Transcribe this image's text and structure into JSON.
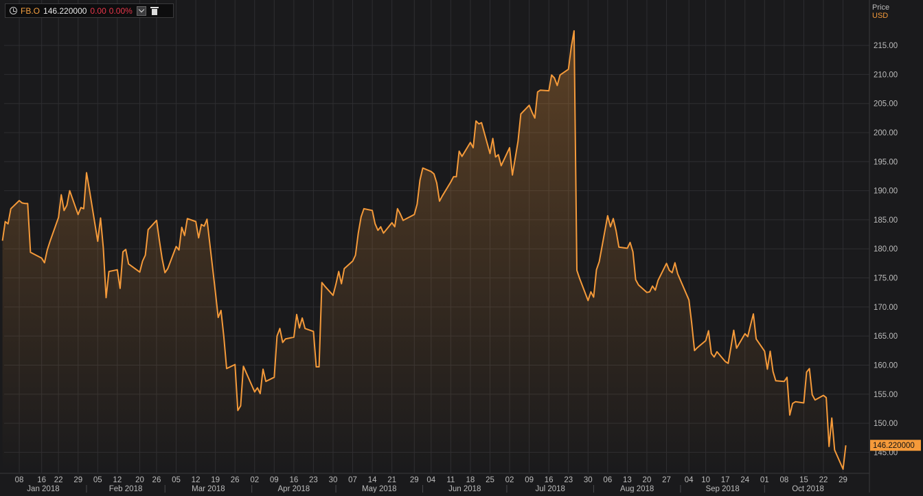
{
  "legend": {
    "symbol": "FB.O",
    "price": "146.220000",
    "change": "0.00",
    "change_pct": "0.00%",
    "dropdown_icon": "chevron-down-icon",
    "delete_icon": "trash-icon",
    "timeframe_icon": "clock-icon"
  },
  "colors": {
    "background": "#1a1a1c",
    "line": "#f59a3a",
    "grid": "#2e2e31",
    "axis_text": "#bdbdbd",
    "negative": "#e8364a"
  },
  "chart_data": {
    "type": "area",
    "ylabel": "Price",
    "unit": "USD",
    "last_value_label": "146.220000",
    "ylim": [
      141.5,
      219.5
    ],
    "y_ticks": [
      145,
      150,
      155,
      160,
      165,
      170,
      175,
      180,
      185,
      190,
      195,
      200,
      205,
      210,
      215
    ],
    "y_tick_labels": [
      "145.00",
      "150.00",
      "155.00",
      "160.00",
      "165.00",
      "170.00",
      "175.00",
      "180.00",
      "185.00",
      "190.00",
      "195.00",
      "200.00",
      "205.00",
      "210.00",
      "215.00"
    ],
    "x_range": [
      "2018-01-01",
      "2018-11-01"
    ],
    "x_ticks": [
      {
        "date": "2018-01-08",
        "label": "08"
      },
      {
        "date": "2018-01-16",
        "label": "16"
      },
      {
        "date": "2018-01-22",
        "label": "22"
      },
      {
        "date": "2018-01-29",
        "label": "29"
      },
      {
        "date": "2018-02-05",
        "label": "05"
      },
      {
        "date": "2018-02-12",
        "label": "12"
      },
      {
        "date": "2018-02-20",
        "label": "20"
      },
      {
        "date": "2018-02-26",
        "label": "26"
      },
      {
        "date": "2018-03-05",
        "label": "05"
      },
      {
        "date": "2018-03-12",
        "label": "12"
      },
      {
        "date": "2018-03-19",
        "label": "19"
      },
      {
        "date": "2018-03-26",
        "label": "26"
      },
      {
        "date": "2018-04-02",
        "label": "02"
      },
      {
        "date": "2018-04-09",
        "label": "09"
      },
      {
        "date": "2018-04-16",
        "label": "16"
      },
      {
        "date": "2018-04-23",
        "label": "23"
      },
      {
        "date": "2018-04-30",
        "label": "30"
      },
      {
        "date": "2018-05-07",
        "label": "07"
      },
      {
        "date": "2018-05-14",
        "label": "14"
      },
      {
        "date": "2018-05-21",
        "label": "21"
      },
      {
        "date": "2018-05-29",
        "label": "29"
      },
      {
        "date": "2018-06-04",
        "label": "04"
      },
      {
        "date": "2018-06-11",
        "label": "11"
      },
      {
        "date": "2018-06-18",
        "label": "18"
      },
      {
        "date": "2018-06-25",
        "label": "25"
      },
      {
        "date": "2018-07-02",
        "label": "02"
      },
      {
        "date": "2018-07-09",
        "label": "09"
      },
      {
        "date": "2018-07-16",
        "label": "16"
      },
      {
        "date": "2018-07-23",
        "label": "23"
      },
      {
        "date": "2018-07-30",
        "label": "30"
      },
      {
        "date": "2018-08-06",
        "label": "06"
      },
      {
        "date": "2018-08-13",
        "label": "13"
      },
      {
        "date": "2018-08-20",
        "label": "20"
      },
      {
        "date": "2018-08-27",
        "label": "27"
      },
      {
        "date": "2018-09-04",
        "label": "04"
      },
      {
        "date": "2018-09-10",
        "label": "10"
      },
      {
        "date": "2018-09-17",
        "label": "17"
      },
      {
        "date": "2018-09-24",
        "label": "24"
      },
      {
        "date": "2018-10-01",
        "label": "01"
      },
      {
        "date": "2018-10-08",
        "label": "08"
      },
      {
        "date": "2018-10-15",
        "label": "15"
      },
      {
        "date": "2018-10-22",
        "label": "22"
      },
      {
        "date": "2018-10-29",
        "label": "29"
      }
    ],
    "months": [
      {
        "start": "2018-01-01",
        "end": "2018-02-01",
        "label": "Jan 2018"
      },
      {
        "start": "2018-02-01",
        "end": "2018-03-01",
        "label": "Feb 2018"
      },
      {
        "start": "2018-03-01",
        "end": "2018-04-01",
        "label": "Mar 2018"
      },
      {
        "start": "2018-04-01",
        "end": "2018-05-01",
        "label": "Apr 2018"
      },
      {
        "start": "2018-05-01",
        "end": "2018-06-01",
        "label": "May 2018"
      },
      {
        "start": "2018-06-01",
        "end": "2018-07-01",
        "label": "Jun 2018"
      },
      {
        "start": "2018-07-01",
        "end": "2018-08-01",
        "label": "Jul 2018"
      },
      {
        "start": "2018-08-01",
        "end": "2018-09-01",
        "label": "Aug 2018"
      },
      {
        "start": "2018-09-01",
        "end": "2018-10-01",
        "label": "Sep 2018"
      },
      {
        "start": "2018-10-01",
        "end": "2018-11-01",
        "label": "Oct 2018"
      }
    ],
    "series": [
      {
        "points": [
          [
            "2018-01-02",
            181.4
          ],
          [
            "2018-01-03",
            184.7
          ],
          [
            "2018-01-04",
            184.3
          ],
          [
            "2018-01-05",
            186.9
          ],
          [
            "2018-01-08",
            188.3
          ],
          [
            "2018-01-09",
            187.9
          ],
          [
            "2018-01-10",
            187.8
          ],
          [
            "2018-01-11",
            187.8
          ],
          [
            "2018-01-12",
            179.4
          ],
          [
            "2018-01-16",
            178.4
          ],
          [
            "2018-01-17",
            177.6
          ],
          [
            "2018-01-18",
            179.8
          ],
          [
            "2018-01-19",
            181.3
          ],
          [
            "2018-01-22",
            185.4
          ],
          [
            "2018-01-23",
            189.3
          ],
          [
            "2018-01-24",
            186.6
          ],
          [
            "2018-01-25",
            187.5
          ],
          [
            "2018-01-26",
            190.0
          ],
          [
            "2018-01-29",
            185.9
          ],
          [
            "2018-01-30",
            187.1
          ],
          [
            "2018-01-31",
            186.9
          ],
          [
            "2018-02-01",
            193.1
          ],
          [
            "2018-02-02",
            190.3
          ],
          [
            "2018-02-05",
            181.3
          ],
          [
            "2018-02-06",
            185.3
          ],
          [
            "2018-02-07",
            180.2
          ],
          [
            "2018-02-08",
            171.6
          ],
          [
            "2018-02-09",
            176.1
          ],
          [
            "2018-02-12",
            176.4
          ],
          [
            "2018-02-13",
            173.2
          ],
          [
            "2018-02-14",
            179.5
          ],
          [
            "2018-02-15",
            179.9
          ],
          [
            "2018-02-16",
            177.4
          ],
          [
            "2018-02-20",
            176.0
          ],
          [
            "2018-02-21",
            177.9
          ],
          [
            "2018-02-22",
            178.9
          ],
          [
            "2018-02-23",
            183.3
          ],
          [
            "2018-02-26",
            184.9
          ],
          [
            "2018-02-27",
            181.5
          ],
          [
            "2018-02-28",
            178.3
          ],
          [
            "2018-03-01",
            175.9
          ],
          [
            "2018-03-02",
            176.6
          ],
          [
            "2018-03-05",
            180.4
          ],
          [
            "2018-03-06",
            179.8
          ],
          [
            "2018-03-07",
            183.7
          ],
          [
            "2018-03-08",
            182.3
          ],
          [
            "2018-03-09",
            185.2
          ],
          [
            "2018-03-12",
            184.7
          ],
          [
            "2018-03-13",
            181.9
          ],
          [
            "2018-03-14",
            184.2
          ],
          [
            "2018-03-15",
            183.9
          ],
          [
            "2018-03-16",
            185.1
          ],
          [
            "2018-03-19",
            172.6
          ],
          [
            "2018-03-20",
            168.2
          ],
          [
            "2018-03-21",
            169.4
          ],
          [
            "2018-03-22",
            164.9
          ],
          [
            "2018-03-23",
            159.4
          ],
          [
            "2018-03-26",
            160.1
          ],
          [
            "2018-03-27",
            152.2
          ],
          [
            "2018-03-28",
            153.0
          ],
          [
            "2018-03-29",
            159.8
          ],
          [
            "2018-04-02",
            155.4
          ],
          [
            "2018-04-03",
            156.1
          ],
          [
            "2018-04-04",
            155.1
          ],
          [
            "2018-04-05",
            159.3
          ],
          [
            "2018-04-06",
            157.2
          ],
          [
            "2018-04-09",
            157.9
          ],
          [
            "2018-04-10",
            165.0
          ],
          [
            "2018-04-11",
            166.3
          ],
          [
            "2018-04-12",
            163.9
          ],
          [
            "2018-04-13",
            164.5
          ],
          [
            "2018-04-16",
            164.8
          ],
          [
            "2018-04-17",
            168.7
          ],
          [
            "2018-04-18",
            166.4
          ],
          [
            "2018-04-19",
            168.1
          ],
          [
            "2018-04-20",
            166.3
          ],
          [
            "2018-04-23",
            165.8
          ],
          [
            "2018-04-24",
            159.7
          ],
          [
            "2018-04-25",
            159.7
          ],
          [
            "2018-04-26",
            174.2
          ],
          [
            "2018-04-27",
            173.6
          ],
          [
            "2018-04-30",
            172.0
          ],
          [
            "2018-05-01",
            173.9
          ],
          [
            "2018-05-02",
            176.1
          ],
          [
            "2018-05-03",
            174.0
          ],
          [
            "2018-05-04",
            176.6
          ],
          [
            "2018-05-07",
            177.9
          ],
          [
            "2018-05-08",
            178.9
          ],
          [
            "2018-05-09",
            182.7
          ],
          [
            "2018-05-10",
            185.5
          ],
          [
            "2018-05-11",
            186.9
          ],
          [
            "2018-05-14",
            186.6
          ],
          [
            "2018-05-15",
            184.3
          ],
          [
            "2018-05-16",
            183.2
          ],
          [
            "2018-05-17",
            183.8
          ],
          [
            "2018-05-18",
            182.7
          ],
          [
            "2018-05-21",
            184.5
          ],
          [
            "2018-05-22",
            183.8
          ],
          [
            "2018-05-23",
            186.9
          ],
          [
            "2018-05-24",
            186.0
          ],
          [
            "2018-05-25",
            184.9
          ],
          [
            "2018-05-29",
            185.9
          ],
          [
            "2018-05-30",
            187.7
          ],
          [
            "2018-05-31",
            191.8
          ],
          [
            "2018-06-01",
            193.9
          ],
          [
            "2018-06-04",
            193.3
          ],
          [
            "2018-06-05",
            192.9
          ],
          [
            "2018-06-06",
            191.3
          ],
          [
            "2018-06-07",
            188.2
          ],
          [
            "2018-06-08",
            189.1
          ],
          [
            "2018-06-11",
            191.5
          ],
          [
            "2018-06-12",
            192.4
          ],
          [
            "2018-06-13",
            192.4
          ],
          [
            "2018-06-14",
            196.8
          ],
          [
            "2018-06-15",
            195.9
          ],
          [
            "2018-06-18",
            198.3
          ],
          [
            "2018-06-19",
            197.4
          ],
          [
            "2018-06-20",
            202.0
          ],
          [
            "2018-06-21",
            201.5
          ],
          [
            "2018-06-22",
            201.7
          ],
          [
            "2018-06-25",
            196.4
          ],
          [
            "2018-06-26",
            199.0
          ],
          [
            "2018-06-27",
            195.8
          ],
          [
            "2018-06-28",
            196.2
          ],
          [
            "2018-06-29",
            194.3
          ],
          [
            "2018-07-02",
            197.4
          ],
          [
            "2018-07-03",
            192.7
          ],
          [
            "2018-07-05",
            198.5
          ],
          [
            "2018-07-06",
            203.2
          ],
          [
            "2018-07-09",
            204.7
          ],
          [
            "2018-07-10",
            203.5
          ],
          [
            "2018-07-11",
            202.5
          ],
          [
            "2018-07-12",
            207.0
          ],
          [
            "2018-07-13",
            207.3
          ],
          [
            "2018-07-16",
            207.2
          ],
          [
            "2018-07-17",
            209.9
          ],
          [
            "2018-07-18",
            209.4
          ],
          [
            "2018-07-19",
            208.1
          ],
          [
            "2018-07-20",
            209.9
          ],
          [
            "2018-07-23",
            210.9
          ],
          [
            "2018-07-24",
            214.7
          ],
          [
            "2018-07-25",
            217.5
          ],
          [
            "2018-07-26",
            176.3
          ],
          [
            "2018-07-27",
            174.9
          ],
          [
            "2018-07-30",
            171.1
          ],
          [
            "2018-07-31",
            172.6
          ],
          [
            "2018-08-01",
            171.7
          ],
          [
            "2018-08-02",
            176.4
          ],
          [
            "2018-08-03",
            177.8
          ],
          [
            "2018-08-06",
            185.7
          ],
          [
            "2018-08-07",
            183.8
          ],
          [
            "2018-08-08",
            185.2
          ],
          [
            "2018-08-09",
            183.1
          ],
          [
            "2018-08-10",
            180.3
          ],
          [
            "2018-08-13",
            180.1
          ],
          [
            "2018-08-14",
            181.1
          ],
          [
            "2018-08-15",
            179.5
          ],
          [
            "2018-08-16",
            174.7
          ],
          [
            "2018-08-17",
            173.8
          ],
          [
            "2018-08-20",
            172.5
          ],
          [
            "2018-08-21",
            172.6
          ],
          [
            "2018-08-22",
            173.6
          ],
          [
            "2018-08-23",
            172.9
          ],
          [
            "2018-08-24",
            174.6
          ],
          [
            "2018-08-27",
            177.5
          ],
          [
            "2018-08-28",
            176.3
          ],
          [
            "2018-08-29",
            175.9
          ],
          [
            "2018-08-30",
            177.6
          ],
          [
            "2018-08-31",
            175.7
          ],
          [
            "2018-09-04",
            171.2
          ],
          [
            "2018-09-05",
            167.2
          ],
          [
            "2018-09-06",
            162.5
          ],
          [
            "2018-09-07",
            163.0
          ],
          [
            "2018-09-10",
            164.2
          ],
          [
            "2018-09-11",
            165.9
          ],
          [
            "2018-09-12",
            162.0
          ],
          [
            "2018-09-13",
            161.4
          ],
          [
            "2018-09-14",
            162.3
          ],
          [
            "2018-09-17",
            160.6
          ],
          [
            "2018-09-18",
            160.3
          ],
          [
            "2018-09-19",
            163.1
          ],
          [
            "2018-09-20",
            166.0
          ],
          [
            "2018-09-21",
            162.9
          ],
          [
            "2018-09-24",
            165.4
          ],
          [
            "2018-09-25",
            164.9
          ],
          [
            "2018-09-26",
            166.9
          ],
          [
            "2018-09-27",
            168.8
          ],
          [
            "2018-09-28",
            164.5
          ],
          [
            "2018-10-01",
            162.4
          ],
          [
            "2018-10-02",
            159.3
          ],
          [
            "2018-10-03",
            162.4
          ],
          [
            "2018-10-04",
            158.9
          ],
          [
            "2018-10-05",
            157.3
          ],
          [
            "2018-10-08",
            157.2
          ],
          [
            "2018-10-09",
            157.9
          ],
          [
            "2018-10-10",
            151.4
          ],
          [
            "2018-10-11",
            153.4
          ],
          [
            "2018-10-12",
            153.7
          ],
          [
            "2018-10-15",
            153.5
          ],
          [
            "2018-10-16",
            158.8
          ],
          [
            "2018-10-17",
            159.4
          ],
          [
            "2018-10-18",
            154.9
          ],
          [
            "2018-10-19",
            154.0
          ],
          [
            "2018-10-22",
            154.8
          ],
          [
            "2018-10-23",
            154.4
          ],
          [
            "2018-10-24",
            146.0
          ],
          [
            "2018-10-25",
            150.9
          ],
          [
            "2018-10-26",
            145.4
          ],
          [
            "2018-10-29",
            142.1
          ],
          [
            "2018-10-30",
            146.2
          ]
        ]
      }
    ]
  }
}
